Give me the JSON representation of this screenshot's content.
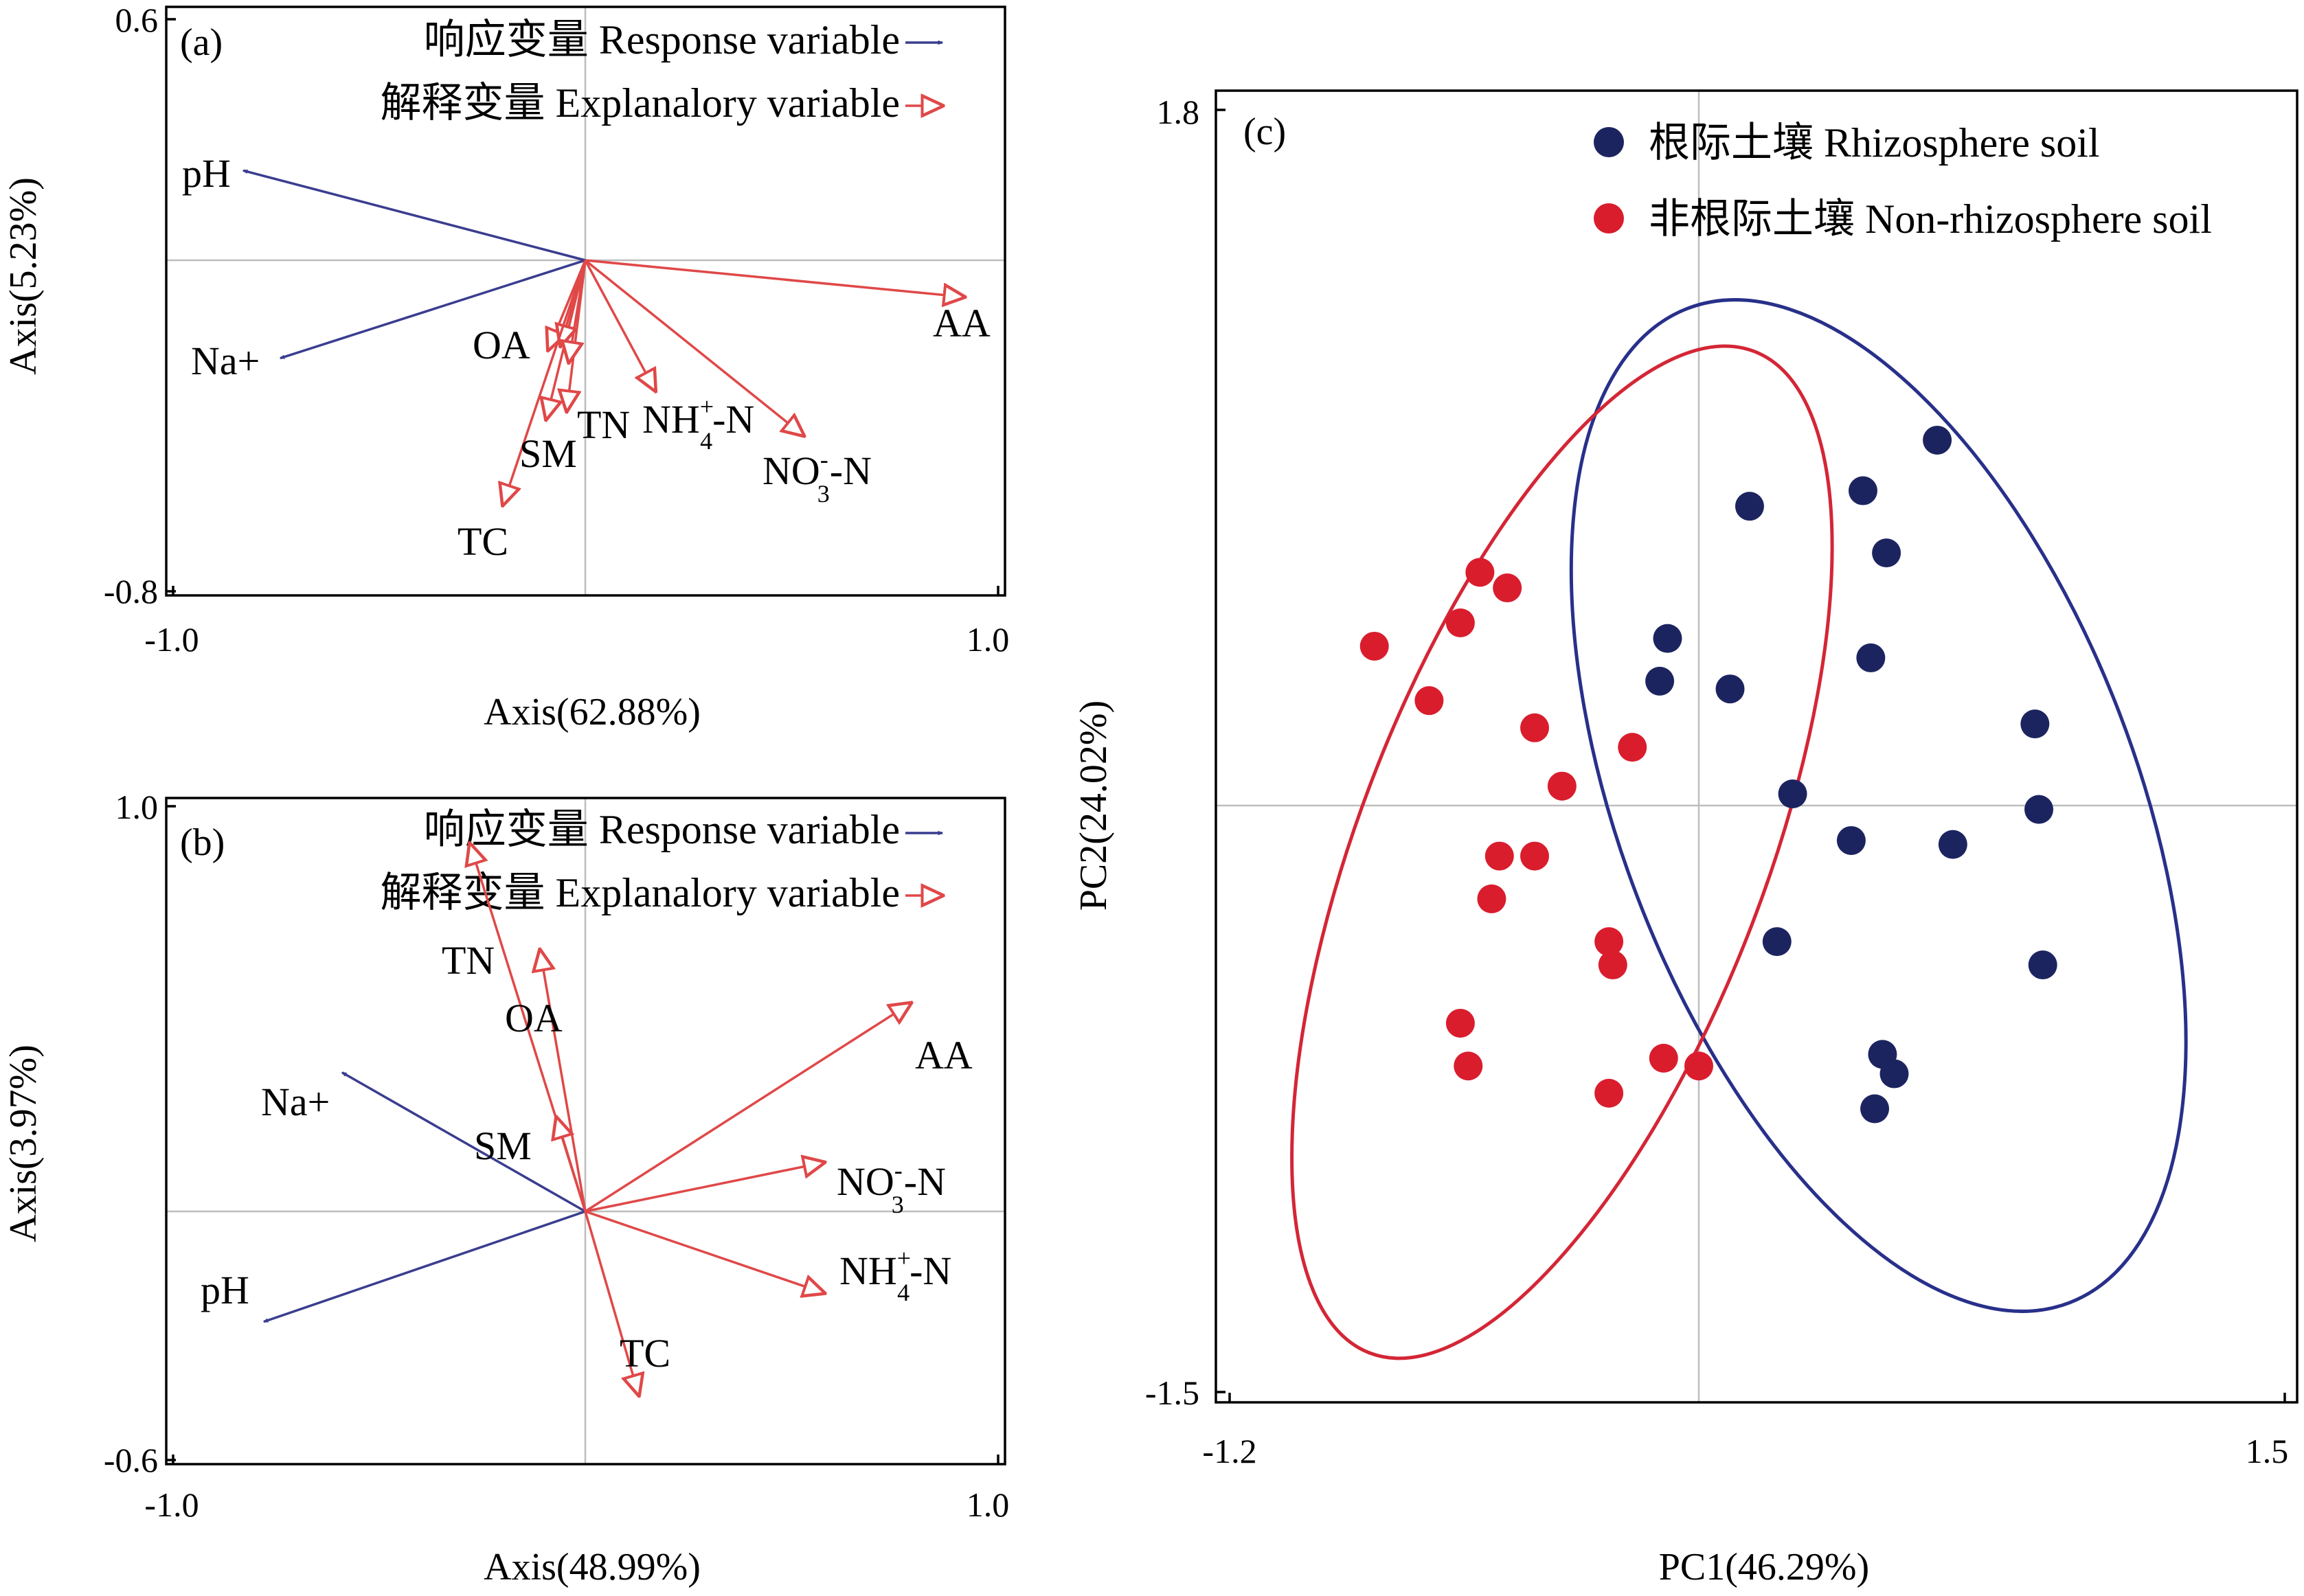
{
  "colors": {
    "response": "#3a3d8f",
    "explanatory": "#e04848",
    "rhizosphere": "#1c2460",
    "non_rhizosphere": "#d91d2d",
    "ellipse_rhizosphere": "#28308a",
    "ellipse_non_rhizosphere": "#d42636"
  },
  "chart_data": [
    {
      "panel": "(a)",
      "type": "scatter",
      "subtype": "biplot",
      "xlabel": "Axis(62.88%)",
      "ylabel": "Axis(5.23%)",
      "xlim": [
        -1.0,
        1.0
      ],
      "ylim": [
        -0.8,
        0.6
      ],
      "xticks": [
        "-1.0",
        "1.0"
      ],
      "yticks": [
        "0.6",
        "-0.8"
      ],
      "grid": false,
      "legend_position": "top-right",
      "legend": [
        {
          "label": "响应变量 Response variable",
          "kind": "response"
        },
        {
          "label": "解释变量 Explanalory variable",
          "kind": "explanatory"
        }
      ],
      "vectors": [
        {
          "name": "pH",
          "kind": "response",
          "x": -0.83,
          "y": 0.22
        },
        {
          "name": "Na+",
          "kind": "response",
          "x": -0.74,
          "y": -0.24
        },
        {
          "name": "AA",
          "kind": "explanatory",
          "x": 0.92,
          "y": -0.09
        },
        {
          "name": "OA",
          "kind": "explanatory",
          "x": -0.09,
          "y": -0.22
        },
        {
          "name": "SM",
          "kind": "explanatory",
          "x": -0.095,
          "y": -0.39
        },
        {
          "name": "TN",
          "kind": "explanatory",
          "x": -0.045,
          "y": -0.37
        },
        {
          "name": "",
          "kind": "explanatory",
          "x": -0.06,
          "y": -0.21
        },
        {
          "name": "",
          "kind": "explanatory",
          "x": -0.04,
          "y": -0.25
        },
        {
          "name": "TC",
          "kind": "explanatory",
          "x": -0.2,
          "y": -0.6
        },
        {
          "name": "NH4+-N",
          "kind": "explanatory",
          "x": 0.17,
          "y": -0.32
        },
        {
          "name": "NO3--N",
          "kind": "explanatory",
          "x": 0.53,
          "y": -0.43
        }
      ]
    },
    {
      "panel": "(b)",
      "type": "scatter",
      "subtype": "biplot",
      "xlabel": "Axis(48.99%)",
      "ylabel": "Axis(3.97%)",
      "xlim": [
        -1.0,
        1.0
      ],
      "ylim": [
        -0.6,
        1.0
      ],
      "xticks": [
        "-1.0",
        "1.0"
      ],
      "yticks": [
        "1.0",
        "-0.6"
      ],
      "grid": false,
      "legend_position": "top-right",
      "legend": [
        {
          "label": "响应变量 Response variable",
          "kind": "response"
        },
        {
          "label": "解释变量 Explanalory variable",
          "kind": "explanatory"
        }
      ],
      "vectors": [
        {
          "name": "pH",
          "kind": "response",
          "x": -0.78,
          "y": -0.27
        },
        {
          "name": "Na+",
          "kind": "response",
          "x": -0.59,
          "y": 0.34
        },
        {
          "name": "TN",
          "kind": "explanatory",
          "x": -0.28,
          "y": 0.9
        },
        {
          "name": "OA",
          "kind": "explanatory",
          "x": -0.11,
          "y": 0.64
        },
        {
          "name": "SM",
          "kind": "explanatory",
          "x": -0.07,
          "y": 0.23
        },
        {
          "name": "AA",
          "kind": "explanatory",
          "x": 0.79,
          "y": 0.51
        },
        {
          "name": "NO3--N",
          "kind": "explanatory",
          "x": 0.58,
          "y": 0.12
        },
        {
          "name": "NH4+-N",
          "kind": "explanatory",
          "x": 0.58,
          "y": -0.2
        },
        {
          "name": "TC",
          "kind": "explanatory",
          "x": 0.13,
          "y": -0.45
        }
      ]
    },
    {
      "panel": "(c)",
      "type": "scatter",
      "xlabel": "PC1(46.29%)",
      "ylabel": "PC2(24.02%)",
      "xlim": [
        -1.2,
        1.5
      ],
      "ylim": [
        -1.5,
        1.8
      ],
      "xticks": [
        "-1.2",
        "1.5"
      ],
      "yticks": [
        "1.8",
        "-1.5"
      ],
      "grid": false,
      "legend_position": "top-right",
      "series": [
        {
          "name": "根际土壤 Rhizosphere soil",
          "points": [
            [
              0.61,
              0.94
            ],
            [
              0.42,
              0.81
            ],
            [
              0.13,
              0.77
            ],
            [
              0.48,
              0.65
            ],
            [
              -0.08,
              0.43
            ],
            [
              -0.1,
              0.32
            ],
            [
              0.08,
              0.3
            ],
            [
              0.44,
              0.38
            ],
            [
              0.86,
              0.21
            ],
            [
              0.24,
              0.03
            ],
            [
              0.87,
              -0.01
            ],
            [
              0.39,
              -0.09
            ],
            [
              0.65,
              -0.1
            ],
            [
              0.2,
              -0.35
            ],
            [
              0.88,
              -0.41
            ],
            [
              0.47,
              -0.64
            ],
            [
              0.5,
              -0.69
            ],
            [
              0.45,
              -0.78
            ]
          ]
        },
        {
          "name": "非根际土壤 Non-rhizosphere soil",
          "points": [
            [
              -0.56,
              0.6
            ],
            [
              -0.49,
              0.56
            ],
            [
              -0.61,
              0.47
            ],
            [
              -0.83,
              0.41
            ],
            [
              -0.69,
              0.27
            ],
            [
              -0.42,
              0.2
            ],
            [
              -0.17,
              0.15
            ],
            [
              -0.35,
              0.05
            ],
            [
              -0.51,
              -0.13
            ],
            [
              -0.42,
              -0.13
            ],
            [
              -0.53,
              -0.24
            ],
            [
              -0.23,
              -0.35
            ],
            [
              -0.22,
              -0.41
            ],
            [
              -0.61,
              -0.56
            ],
            [
              -0.59,
              -0.67
            ],
            [
              -0.09,
              -0.65
            ],
            [
              0.0,
              -0.67
            ],
            [
              -0.23,
              -0.74
            ]
          ]
        }
      ],
      "ellipses": [
        {
          "series": "根际土壤 Rhizosphere soil",
          "center": [
            0.46,
            0.0
          ],
          "radii": [
            0.66,
            1.37
          ],
          "rotation_deg": -21
        },
        {
          "series": "非根际土壤 Non-rhizosphere soil",
          "center": [
            -0.35,
            -0.12
          ],
          "radii": [
            0.52,
            1.38
          ],
          "rotation_deg": 21
        }
      ]
    }
  ]
}
